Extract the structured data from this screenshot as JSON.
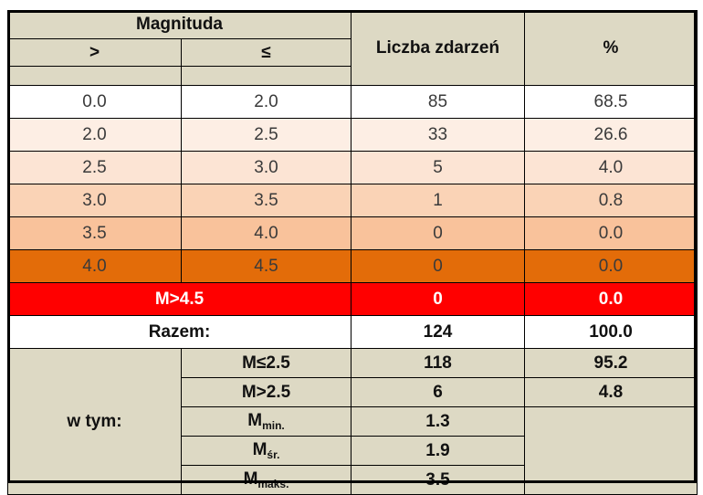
{
  "header": {
    "magnituda": "Magnituda",
    "gt": ">",
    "le": "≤",
    "count": "Liczba zdarzeń",
    "percent": "%"
  },
  "rows": [
    {
      "from": "0.0",
      "to": "2.0",
      "count": "85",
      "percent": "68.5",
      "bg": "#ffffff"
    },
    {
      "from": "2.0",
      "to": "2.5",
      "count": "33",
      "percent": "26.6",
      "bg": "#fdeee4"
    },
    {
      "from": "2.5",
      "to": "3.0",
      "count": "5",
      "percent": "4.0",
      "bg": "#fce4d4"
    },
    {
      "from": "3.0",
      "to": "3.5",
      "count": "1",
      "percent": "0.8",
      "bg": "#fad3b6"
    },
    {
      "from": "3.5",
      "to": "4.0",
      "count": "0",
      "percent": "0.0",
      "bg": "#f9c29b"
    },
    {
      "from": "4.0",
      "to": "4.5",
      "count": "0",
      "percent": "0.0",
      "bg": "#e36c09"
    }
  ],
  "over45": {
    "label": "M>4.5",
    "count": "0",
    "percent": "0.0"
  },
  "total": {
    "label": "Razem:",
    "count": "124",
    "percent": "100.0"
  },
  "breakdown": {
    "label": "w tym:",
    "le25": {
      "label": "M≤2.5",
      "count": "118",
      "percent": "95.2"
    },
    "gt25": {
      "label": "M>2.5",
      "count": "6",
      "percent": "4.8"
    },
    "mmin": {
      "base": "M",
      "sub": "min.",
      "value": "1.3"
    },
    "msr": {
      "base": "M",
      "sub": "śr.",
      "value": "1.9"
    },
    "mmaks": {
      "base": "M",
      "sub": "maks.",
      "value": "3.5"
    }
  }
}
